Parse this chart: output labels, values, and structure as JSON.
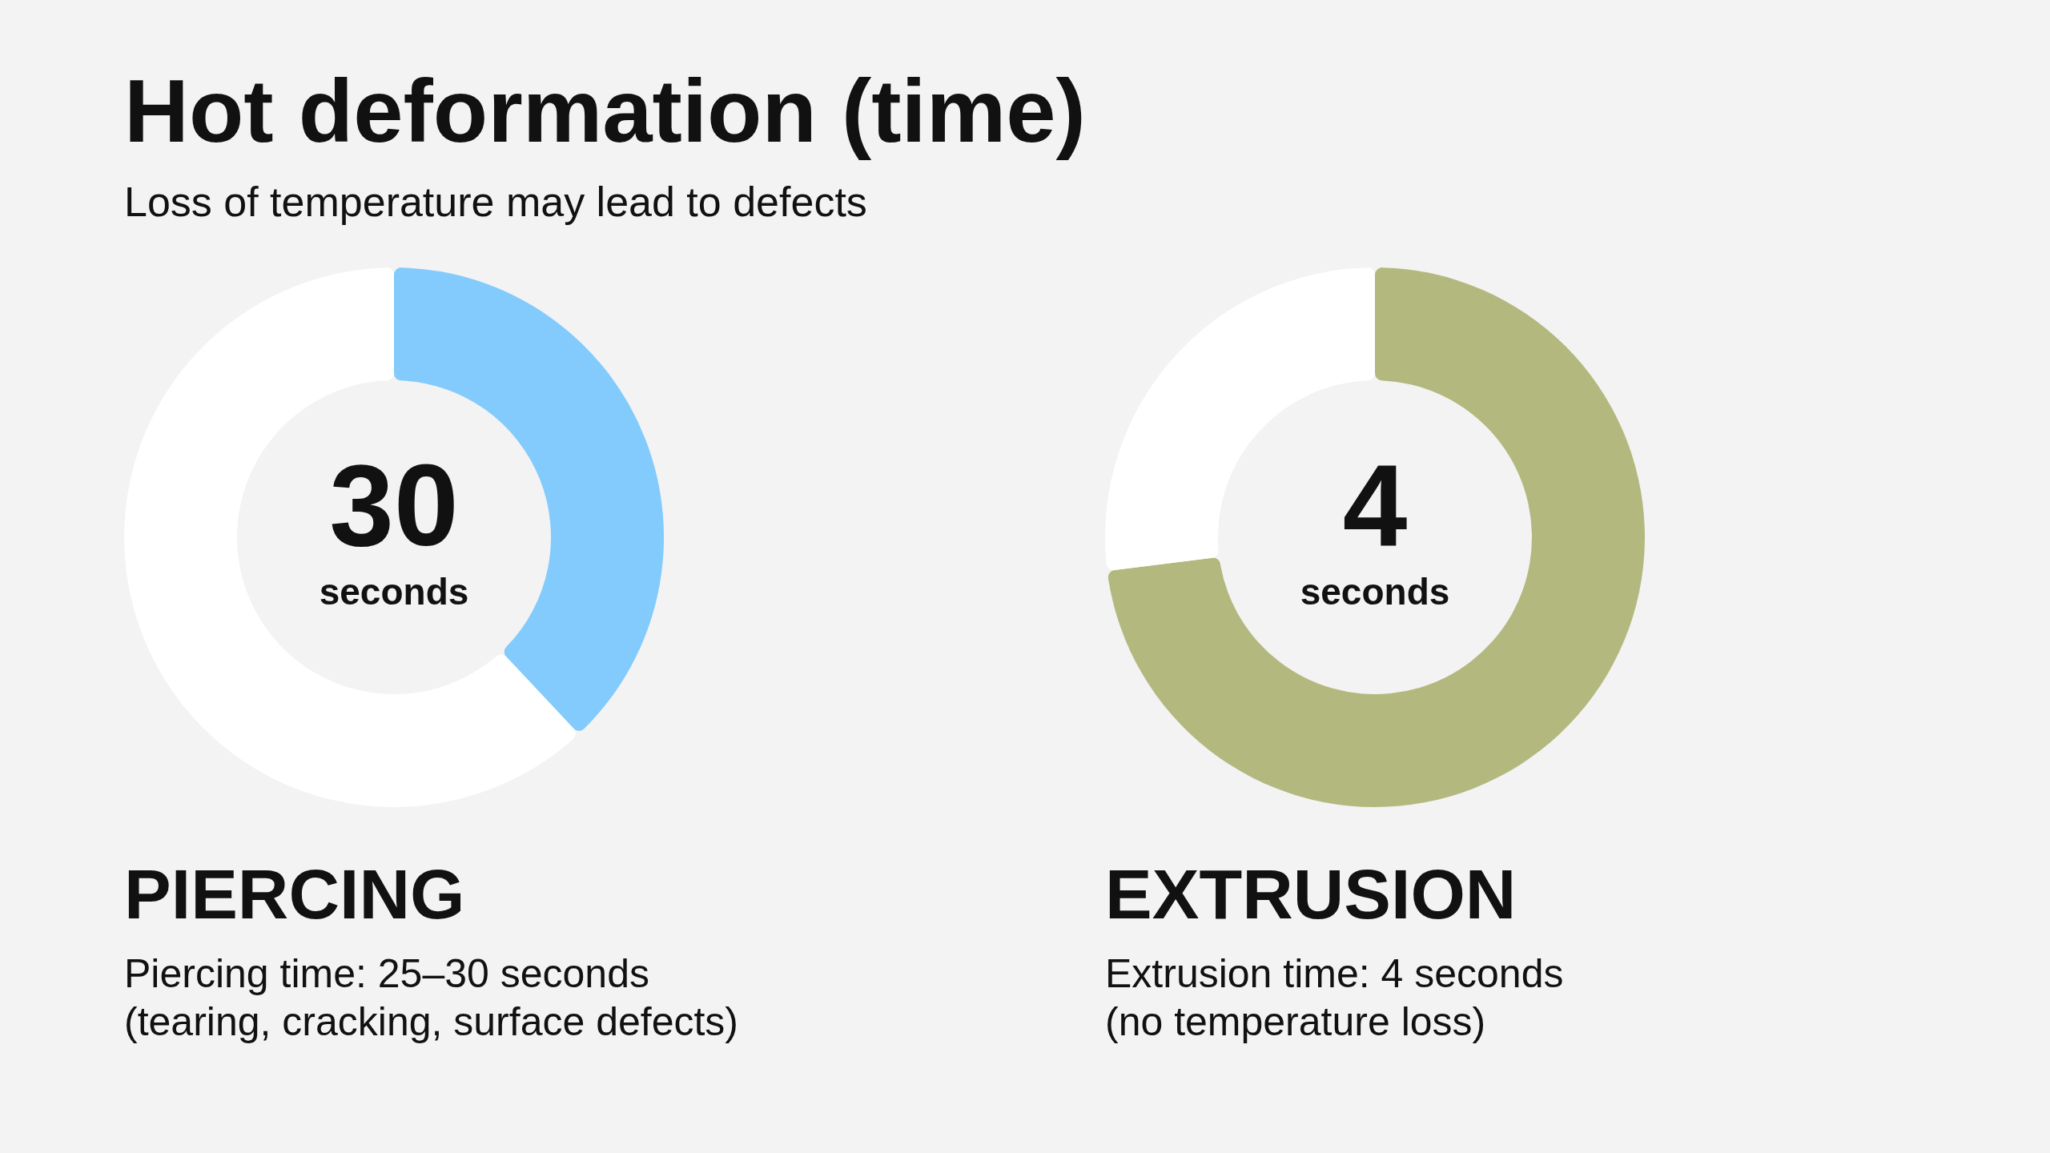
{
  "chart_data": [
    {
      "type": "donut",
      "title": "Hot deformation (time)",
      "subtitle": "Loss of temperature may lead to defects",
      "categories": [
        null,
        null
      ],
      "values": [
        38,
        62
      ],
      "colors": [
        "#82cbfc",
        "#ffffff"
      ],
      "annotations": [
        "30",
        "seconds",
        "PIERCING",
        "Piercing time: 25–30 seconds",
        "(tearing, cracking, surface defects)"
      ]
    },
    {
      "type": "donut",
      "categories": [
        null,
        null
      ],
      "values": [
        73,
        27
      ],
      "colors": [
        "#b3b97e",
        "#ffffff"
      ],
      "annotations": [
        "4",
        "seconds",
        "EXTRUSION",
        "Extrusion time: 4 seconds",
        "(no temperature loss)"
      ]
    }
  ]
}
